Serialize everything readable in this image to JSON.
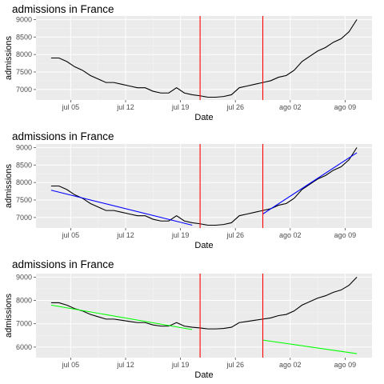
{
  "chart_data": [
    {
      "type": "line",
      "title": "admissions in France",
      "xlabel": "Date",
      "ylabel": "admissions",
      "x_ticks": [
        "jul 05",
        "jul 12",
        "jul 19",
        "jul 26",
        "ago 02",
        "ago 09"
      ],
      "y_ticks": [
        7000,
        8000,
        9000
      ],
      "y_ticks_minor_labels": [
        7500,
        8500
      ],
      "ylim": [
        6700,
        9100
      ],
      "y_tick_labels": [
        "7000",
        "7500",
        "8000",
        "8500",
        "9000"
      ],
      "x": [
        1,
        2,
        3,
        4,
        5,
        6,
        7,
        8,
        9,
        10,
        11,
        12,
        13,
        14,
        15,
        16,
        17,
        18,
        19,
        20,
        21,
        22,
        23,
        24,
        25,
        26,
        27,
        28,
        29,
        30,
        31,
        32,
        33,
        34,
        35,
        36,
        37,
        38,
        39,
        40
      ],
      "series": [
        {
          "color": "#000000",
          "values": [
            7900,
            7900,
            7800,
            7650,
            7550,
            7400,
            7300,
            7200,
            7200,
            7150,
            7100,
            7050,
            7050,
            6950,
            6900,
            6900,
            7050,
            6900,
            6850,
            6820,
            6780,
            6780,
            6800,
            6850,
            7050,
            7100,
            7150,
            7200,
            7250,
            7350,
            7400,
            7550,
            7800,
            7950,
            8100,
            8200,
            8350,
            8450,
            8650,
            9000
          ]
        }
      ],
      "vlines": [
        {
          "x": 20,
          "color": "#ff0000"
        },
        {
          "x": 28,
          "color": "#ff0000"
        }
      ],
      "grid": true,
      "background": "#ebebeb"
    },
    {
      "type": "line",
      "title": "admissions in France",
      "xlabel": "Date",
      "ylabel": "admissions",
      "x_ticks": [
        "jul 05",
        "jul 12",
        "jul 19",
        "jul 26",
        "ago 02",
        "ago 09"
      ],
      "ylim": [
        6700,
        9100
      ],
      "y_tick_labels": [
        "7000",
        "7500",
        "8000",
        "8500",
        "9000"
      ],
      "x": [
        1,
        2,
        3,
        4,
        5,
        6,
        7,
        8,
        9,
        10,
        11,
        12,
        13,
        14,
        15,
        16,
        17,
        18,
        19,
        20,
        21,
        22,
        23,
        24,
        25,
        26,
        27,
        28,
        29,
        30,
        31,
        32,
        33,
        34,
        35,
        36,
        37,
        38,
        39,
        40
      ],
      "series": [
        {
          "color": "#000000",
          "values": [
            7900,
            7900,
            7800,
            7650,
            7550,
            7400,
            7300,
            7200,
            7200,
            7150,
            7100,
            7050,
            7050,
            6950,
            6900,
            6900,
            7050,
            6900,
            6850,
            6820,
            6780,
            6780,
            6800,
            6850,
            7050,
            7100,
            7150,
            7200,
            7250,
            7350,
            7400,
            7550,
            7800,
            7950,
            8100,
            8200,
            8350,
            8450,
            8650,
            9000
          ]
        }
      ],
      "fits": [
        {
          "color": "#0000ff",
          "x": [
            1,
            19
          ],
          "values": [
            7780,
            6780
          ]
        },
        {
          "color": "#0000ff",
          "x": [
            28,
            40
          ],
          "values": [
            7100,
            8850
          ]
        }
      ],
      "vlines": [
        {
          "x": 20,
          "color": "#ff0000"
        },
        {
          "x": 28,
          "color": "#ff0000"
        }
      ],
      "grid": true,
      "background": "#ebebeb"
    },
    {
      "type": "line",
      "title": "admissions in France",
      "xlabel": "Date",
      "ylabel": "admissions",
      "x_ticks": [
        "jul 05",
        "jul 12",
        "jul 19",
        "jul 26",
        "ago 02",
        "ago 09"
      ],
      "ylim": [
        5550,
        9150
      ],
      "y_tick_labels": [
        "6000",
        "7000",
        "8000",
        "9000"
      ],
      "x": [
        1,
        2,
        3,
        4,
        5,
        6,
        7,
        8,
        9,
        10,
        11,
        12,
        13,
        14,
        15,
        16,
        17,
        18,
        19,
        20,
        21,
        22,
        23,
        24,
        25,
        26,
        27,
        28,
        29,
        30,
        31,
        32,
        33,
        34,
        35,
        36,
        37,
        38,
        39,
        40
      ],
      "series": [
        {
          "color": "#000000",
          "values": [
            7900,
            7900,
            7800,
            7650,
            7550,
            7400,
            7300,
            7200,
            7200,
            7150,
            7100,
            7050,
            7050,
            6950,
            6900,
            6900,
            7050,
            6900,
            6850,
            6820,
            6780,
            6780,
            6800,
            6850,
            7050,
            7100,
            7150,
            7200,
            7250,
            7350,
            7400,
            7550,
            7800,
            7950,
            8100,
            8200,
            8350,
            8450,
            8650,
            9000
          ]
        }
      ],
      "fits": [
        {
          "color": "#00ff00",
          "x": [
            1,
            19
          ],
          "values": [
            7800,
            6750
          ]
        },
        {
          "color": "#00ff00",
          "x": [
            28,
            40
          ],
          "values": [
            6300,
            5720
          ]
        }
      ],
      "vlines": [
        {
          "x": 20,
          "color": "#ff0000"
        },
        {
          "x": 28,
          "color": "#ff0000"
        }
      ],
      "grid": true,
      "background": "#ebebeb"
    }
  ]
}
